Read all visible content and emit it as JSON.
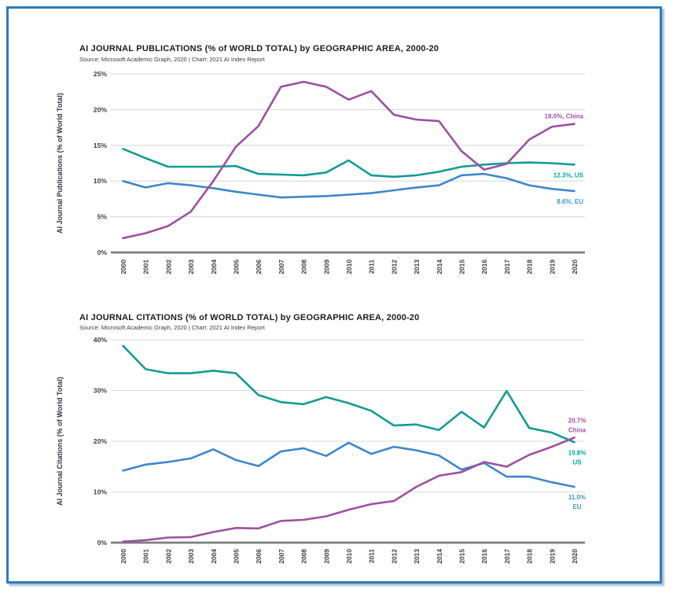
{
  "frame": {
    "border_color": "#2b7cbf",
    "background": "#ffffff"
  },
  "chart_data": [
    {
      "type": "line",
      "title": "AI JOURNAL PUBLICATIONS (% of WORLD TOTAL) by GEOGRAPHIC AREA, 2000-20",
      "source": "Source: Microsoft Academic Graph, 2020 | Chart: 2021 AI Index Report",
      "ylabel": "AI Journal Publications (% of World Total)",
      "ylim": [
        0,
        25
      ],
      "y_ticks": [
        0,
        5,
        10,
        15,
        20,
        25
      ],
      "y_tick_labels": [
        "0%",
        "5%",
        "10%",
        "15%",
        "20%",
        "25%"
      ],
      "grid": "horizontal",
      "legend_position": "end-of-line",
      "x_tick_labels": [
        "2000",
        "2001",
        "2002",
        "2003",
        "2004",
        "2005",
        "2006",
        "2007",
        "2008",
        "2009",
        "2010",
        "2011",
        "2012",
        "2013",
        "2014",
        "2015",
        "2016",
        "2017",
        "2018",
        "2019",
        "2020"
      ],
      "series": [
        {
          "name": "US",
          "color": "#149a94",
          "label_color": "#00a5ad",
          "end_label": [
            "12.3%, US"
          ],
          "label_side": "below",
          "values": [
            14.5,
            13.2,
            12.0,
            12.0,
            12.0,
            12.1,
            11.0,
            10.9,
            10.8,
            11.2,
            12.9,
            10.8,
            10.6,
            10.8,
            11.3,
            12.0,
            12.3,
            12.5,
            12.6,
            12.5,
            12.3
          ]
        },
        {
          "name": "EU",
          "color": "#3e87c9",
          "label_color": "#3e94d6",
          "end_label": [
            "8.6%, EU"
          ],
          "label_side": "below",
          "values": [
            10.0,
            9.1,
            9.7,
            9.4,
            9.0,
            8.5,
            8.1,
            7.7,
            7.8,
            7.9,
            8.1,
            8.3,
            8.7,
            9.1,
            9.4,
            10.8,
            11.0,
            10.4,
            9.4,
            8.9,
            8.6
          ]
        },
        {
          "name": "China",
          "color": "#9c51a0",
          "label_color": "#a44fa8",
          "end_label": [
            "18.0%, China"
          ],
          "label_side": "above",
          "values": [
            2.0,
            2.7,
            3.7,
            5.7,
            10.0,
            14.8,
            17.7,
            23.2,
            23.9,
            23.2,
            21.4,
            22.6,
            19.3,
            18.6,
            18.4,
            14.2,
            11.6,
            12.4,
            15.8,
            17.6,
            18.0
          ]
        }
      ]
    },
    {
      "type": "line",
      "title": "AI JOURNAL CITATIONS (% of WORLD TOTAL) by GEOGRAPHIC AREA, 2000-20",
      "source": "Source: Microsoft Academic Graph, 2020 | Chart: 2021 AI Index Report",
      "ylabel": "AI Journal Citations (% of World Total)",
      "ylim": [
        0,
        40
      ],
      "y_ticks": [
        0,
        10,
        20,
        30,
        40
      ],
      "y_tick_labels": [
        "0%",
        "10%",
        "20%",
        "30%",
        "40%"
      ],
      "grid": "horizontal",
      "legend_position": "end-of-line",
      "x_tick_labels": [
        "2000",
        "2001",
        "2002",
        "2003",
        "2004",
        "2005",
        "2006",
        "2007",
        "2008",
        "2009",
        "2010",
        "2011",
        "2012",
        "2013",
        "2014",
        "2015",
        "2016",
        "2017",
        "2018",
        "2019",
        "2020"
      ],
      "series": [
        {
          "name": "US",
          "color": "#149a94",
          "label_color": "#00a5ad",
          "end_label": [
            "19.8%",
            "US"
          ],
          "label_side": "below",
          "values": [
            38.8,
            34.2,
            33.4,
            33.4,
            33.9,
            33.4,
            29.1,
            27.7,
            27.3,
            28.7,
            27.5,
            26.0,
            23.1,
            23.3,
            22.2,
            25.8,
            22.7,
            29.9,
            22.6,
            21.7,
            19.8
          ]
        },
        {
          "name": "EU",
          "color": "#3e87c9",
          "label_color": "#3e94d6",
          "end_label": [
            "11.0%",
            "EU"
          ],
          "label_side": "below",
          "values": [
            14.2,
            15.4,
            15.9,
            16.6,
            18.4,
            16.3,
            15.1,
            18.0,
            18.6,
            17.1,
            19.7,
            17.5,
            18.9,
            18.2,
            17.2,
            14.4,
            15.7,
            13.0,
            13.0,
            11.9,
            11.0
          ]
        },
        {
          "name": "China",
          "color": "#9c51a0",
          "label_color": "#a44fa8",
          "end_label": [
            "20.7%",
            "China"
          ],
          "label_side": "above",
          "values": [
            0.2,
            0.5,
            1.0,
            1.1,
            2.1,
            2.9,
            2.8,
            4.3,
            4.5,
            5.2,
            6.5,
            7.6,
            8.2,
            11.0,
            13.2,
            13.9,
            15.9,
            15.0,
            17.3,
            18.9,
            20.7
          ]
        }
      ]
    }
  ]
}
